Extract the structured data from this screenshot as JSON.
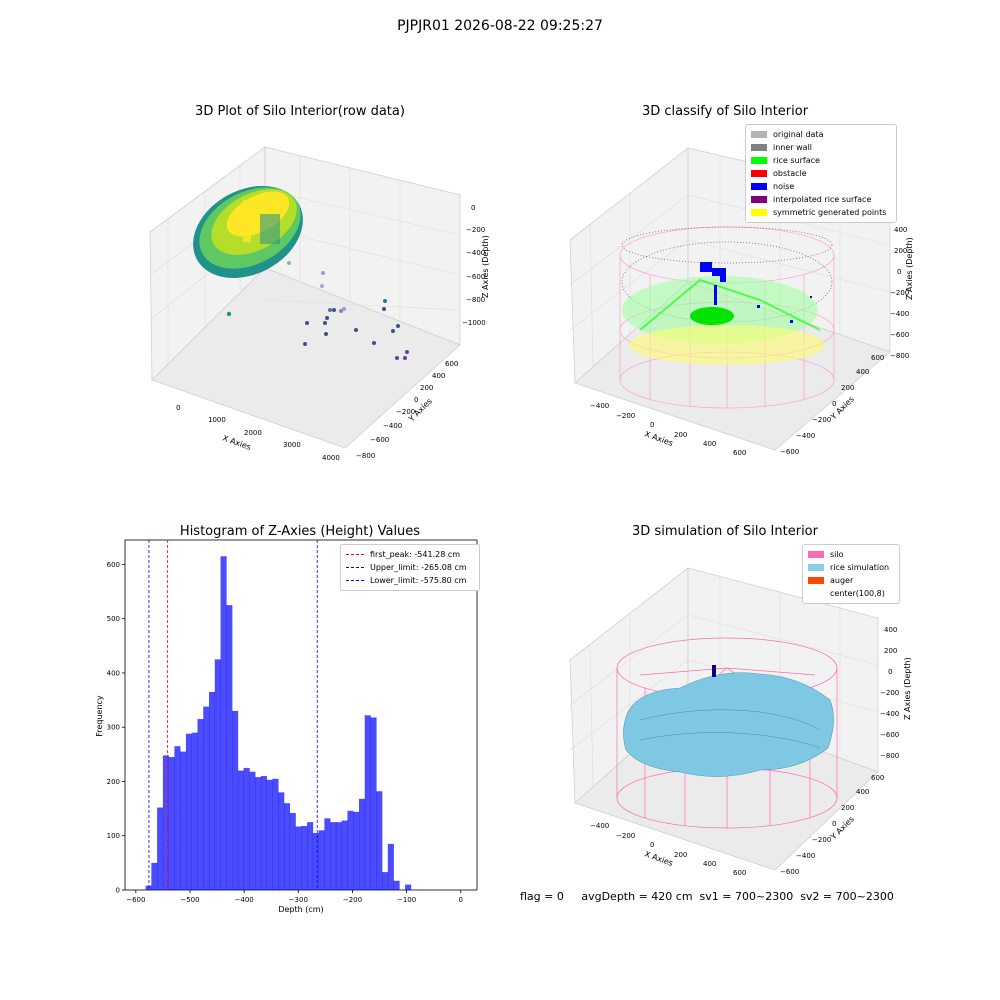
{
  "suptitle": "PJPJR01 2026-08-22 09:25:27",
  "status_line": "flag = 0     avgDepth = 420 cm  sv1 = 700~2300  sv2 = 700~2300",
  "chart_data": [
    {
      "type": "scatter3d",
      "title": "3D Plot of Silo Interior(row data)",
      "xlabel": "X Axies",
      "ylabel": "Y Axies",
      "zlabel": "Z Axies (Depth)",
      "x_ticks": [
        "0",
        "1000",
        "2000",
        "3000",
        "4000"
      ],
      "y_ticks": [
        "−800",
        "−600",
        "−400",
        "−200",
        "0",
        "200",
        "400",
        "600"
      ],
      "z_ticks": [
        "0",
        "−200",
        "−400",
        "−600",
        "−800",
        "−1000"
      ],
      "colormap": [
        "#440154",
        "#3b528b",
        "#21918c",
        "#5ec962",
        "#fde725"
      ],
      "grid": true
    },
    {
      "type": "scatter3d",
      "title": "3D classify of Silo Interior",
      "xlabel": "X Axies",
      "ylabel": "Y Axies",
      "zlabel": "Z Axies (Depth)",
      "x_ticks": [
        "−400",
        "−200",
        "0",
        "200",
        "400",
        "600"
      ],
      "y_ticks": [
        "−600",
        "−400",
        "−200",
        "0",
        "200",
        "400",
        "600"
      ],
      "z_ticks": [
        "400",
        "200",
        "0",
        "−200",
        "−400",
        "−600",
        "−800"
      ],
      "legend": [
        {
          "label": "original data",
          "color": "#b3b3b3"
        },
        {
          "label": "inner wall",
          "color": "#808080"
        },
        {
          "label": "rice surface",
          "color": "#00ff00"
        },
        {
          "label": "obstacle",
          "color": "#ff0000"
        },
        {
          "label": "noise",
          "color": "#0000ff"
        },
        {
          "label": "interpolated rice surface",
          "color": "#800080"
        },
        {
          "label": "symmetric generated points",
          "color": "#ffff00"
        }
      ],
      "legend_position": "top-right",
      "grid": true
    },
    {
      "type": "histogram",
      "title": "Histogram of Z-Axies (Height) Values",
      "xlabel": "Depth (cm)",
      "ylabel": "Frequency",
      "xlim": [
        -620,
        30
      ],
      "ylim": [
        0,
        645
      ],
      "x_ticks": [
        -600,
        -500,
        -400,
        -300,
        -200,
        -100,
        0
      ],
      "y_ticks": [
        0,
        100,
        200,
        300,
        400,
        500,
        600
      ],
      "bin_start": -582,
      "bin_width": 10.65,
      "values": [
        8,
        50,
        152,
        248,
        245,
        265,
        255,
        288,
        290,
        315,
        338,
        365,
        425,
        615,
        525,
        330,
        220,
        225,
        218,
        208,
        210,
        203,
        205,
        180,
        160,
        142,
        117,
        118,
        125,
        105,
        110,
        132,
        125,
        125,
        128,
        146,
        144,
        168,
        322,
        318,
        182,
        33,
        85,
        17,
        0,
        10
      ],
      "bar_color": "#0000ff",
      "vlines": [
        {
          "label": "first_peak: -541.28 cm",
          "x": -541.28,
          "color": "#ff0000"
        },
        {
          "label": "Upper_limit: -265.08 cm",
          "x": -265.08,
          "color": "#0000ff"
        },
        {
          "label": "Lower_limit: -575.80 cm",
          "x": -575.8,
          "color": "#0000ff"
        }
      ],
      "legend_position": "top-right",
      "grid": false
    },
    {
      "type": "surface3d",
      "title": "3D simulation of Silo Interior",
      "xlabel": "X Axies",
      "ylabel": "Y Axies",
      "zlabel": "Z Axies (Depth)",
      "x_ticks": [
        "−400",
        "−200",
        "0",
        "200",
        "400",
        "600"
      ],
      "y_ticks": [
        "−600",
        "−400",
        "−200",
        "0",
        "200",
        "400",
        "600"
      ],
      "z_ticks": [
        "400",
        "200",
        "0",
        "−200",
        "−400",
        "−600",
        "−800"
      ],
      "legend": [
        {
          "label": "silo",
          "color": "#ff69b4"
        },
        {
          "label": "rice simulation",
          "color": "#87ceeb"
        },
        {
          "label": "auger",
          "color": "#ff4500"
        },
        {
          "label": "center(100,8)",
          "color": "#ffffff"
        }
      ],
      "legend_position": "top-right",
      "grid": true
    }
  ]
}
